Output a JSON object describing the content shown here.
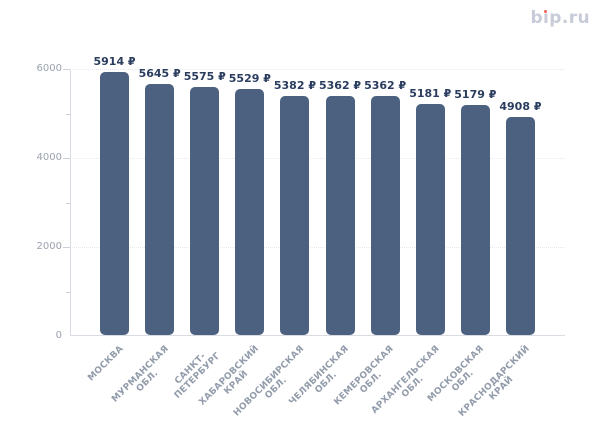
{
  "page": {
    "background": "#ffffff"
  },
  "logo": {
    "text": "bip.ru",
    "color": "#c8ccd8",
    "dot_color": "#ef6156"
  },
  "chart_data": {
    "type": "bar",
    "title": "",
    "xlabel": "",
    "ylabel": "",
    "categories": [
      "МОСКВА",
      "МУРМАНСКАЯ ОБЛ.",
      "САНКТ-ПЕТЕРБУРГ",
      "ХАБАРОВСКИЙ КРАЙ",
      "НОВОСИБИРСКАЯ ОБЛ.",
      "ЧЕЛЯБИНСКАЯ ОБЛ.",
      "КЕМЕРОВСКАЯ ОБЛ.",
      "АРХАНГЕЛЬСКАЯ ОБЛ.",
      "МОСКОВСКАЯ ОБЛ.",
      "КРАСНОДАРСКИЙ КРАЙ"
    ],
    "category_lines": [
      [
        "МОСКВА"
      ],
      [
        "МУРМАНСКАЯ",
        "ОБЛ."
      ],
      [
        "САНКТ-",
        "ПЕТЕРБУРГ"
      ],
      [
        "ХАБАРОВСКИЙ",
        "КРАЙ"
      ],
      [
        "НОВОСИБИРСКАЯ",
        "ОБЛ."
      ],
      [
        "ЧЕЛЯБИНСКАЯ",
        "ОБЛ."
      ],
      [
        "КЕМЕРОВСКАЯ",
        "ОБЛ."
      ],
      [
        "АРХАНГЕЛЬСКАЯ",
        "ОБЛ."
      ],
      [
        "МОСКОВСКАЯ",
        "ОБЛ."
      ],
      [
        "КРАСНОДАРСКИЙ",
        "КРАЙ"
      ]
    ],
    "values": [
      5914,
      5645,
      5575,
      5529,
      5382,
      5362,
      5362,
      5181,
      5179,
      4908
    ],
    "value_labels": [
      "5914 ₽",
      "5645 ₽",
      "5575 ₽",
      "5529 ₽",
      "5382 ₽",
      "5362 ₽",
      "5362 ₽",
      "5181 ₽",
      "5179 ₽",
      "4908 ₽"
    ],
    "currency_symbol": "₽",
    "y_axis": {
      "ylim": [
        0,
        6000
      ],
      "ticks": [
        0,
        2000,
        4000,
        6000
      ],
      "tick_labels": [
        "0",
        "2000",
        "4000",
        "6000"
      ],
      "minor_ticks": [
        1000,
        3000,
        5000
      ]
    },
    "grid": {
      "horizontal_major": true,
      "style": "dotted"
    },
    "legend_position": "none",
    "colors": {
      "bar": "#4c617f",
      "value_label": "#2b3d5e",
      "y_tick_label": "#9aa2ad",
      "category_label": "#939cab",
      "gridline": "#e6e8ec",
      "axis_line": "#d9dce2"
    }
  }
}
